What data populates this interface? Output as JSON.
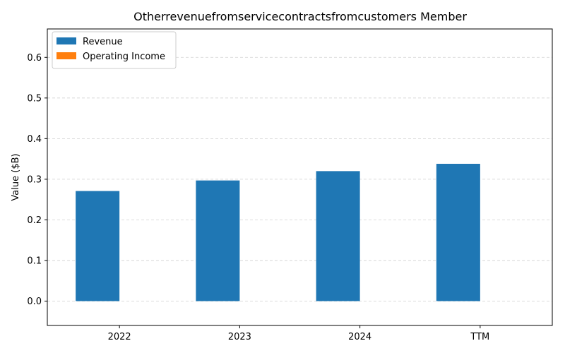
{
  "chart_data": {
    "type": "bar",
    "title": "Otherrevenuefromservicecontractsfromcustomers Member",
    "xlabel": "",
    "ylabel": "Value ($B)",
    "categories": [
      "2022",
      "2023",
      "2024",
      "TTM"
    ],
    "series": [
      {
        "name": "Revenue",
        "color": "#1f77b4",
        "values": [
          0.271,
          0.297,
          0.32,
          0.338
        ]
      },
      {
        "name": "Operating Income",
        "color": "#ff7f0e",
        "values": [
          0,
          0,
          0,
          0
        ]
      }
    ],
    "ylim": [
      -0.06,
      0.67
    ],
    "yticks": [
      0.0,
      0.1,
      0.2,
      0.3,
      0.4,
      0.5,
      0.6
    ],
    "ytick_labels": [
      "0.0",
      "0.1",
      "0.2",
      "0.3",
      "0.4",
      "0.5",
      "0.6"
    ],
    "grid": "y-dashed",
    "legend_position": "top-left"
  }
}
